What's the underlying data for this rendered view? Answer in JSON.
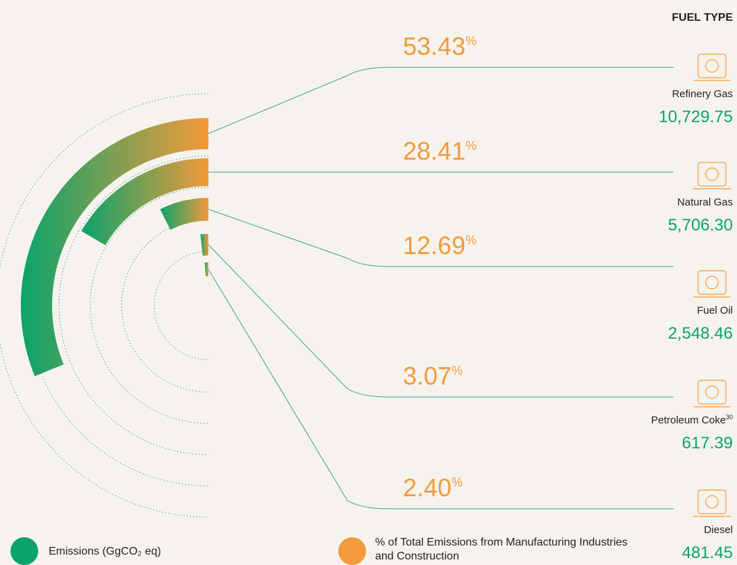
{
  "chart_data": {
    "type": "radial",
    "header": "FUEL TYPE",
    "categories": [
      "Refinery Gas",
      "Natural Gas",
      "Fuel Oil",
      "Petroleum Coke",
      "Diesel"
    ],
    "category_notes": [
      null,
      null,
      null,
      "30",
      null
    ],
    "unit": "%",
    "series": [
      {
        "name": "% of Total Emissions from Manufacturing Industries and Construction",
        "color": "#f39a3a",
        "values": [
          53.43,
          28.41,
          12.69,
          3.07,
          2.4
        ],
        "value_labels": [
          "53.43",
          "28.41",
          "12.69",
          "3.07",
          "2.40"
        ]
      },
      {
        "name": "Emissions (GgCO₂ eq)",
        "color": "#0aa36b",
        "values": [
          10729.75,
          5706.3,
          2548.46,
          617.39,
          481.45
        ],
        "value_labels": [
          "10,729.75",
          "5,706.30",
          "2,548.46",
          "617.39",
          "481.45"
        ]
      }
    ]
  }
}
